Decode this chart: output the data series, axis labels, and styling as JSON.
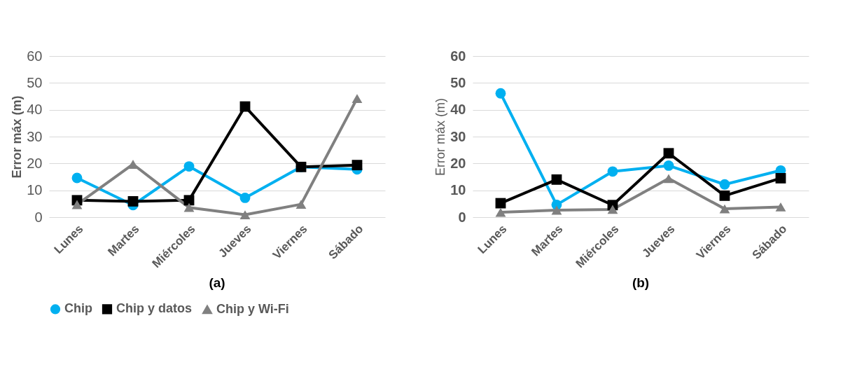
{
  "chart_data": [
    {
      "type": "line",
      "title": "(a)",
      "ylabel": "Error máx (m)",
      "categories": [
        "Lunes",
        "Martes",
        "Miércoles",
        "Jueves",
        "Viernes",
        "Sábado"
      ],
      "ylim": [
        0,
        60
      ],
      "yticks": [
        0,
        10,
        20,
        30,
        40,
        50,
        60
      ],
      "grid": "y",
      "legend": "bottom",
      "line_style": "solid",
      "series": [
        {
          "name": "Chip",
          "color": "#00b0f0",
          "marker": "circle",
          "values": [
            14.6,
            4.5,
            18.9,
            7.2,
            18.7,
            17.8
          ]
        },
        {
          "name": "Chip y datos",
          "color": "#000000",
          "marker": "square",
          "values": [
            6.3,
            5.9,
            6.3,
            41.2,
            18.7,
            19.4
          ]
        },
        {
          "name": "Chip y Wi-Fi",
          "color": "#808080",
          "marker": "triangle",
          "values": [
            4.7,
            19.7,
            3.6,
            0.9,
            4.8,
            44.2
          ]
        }
      ]
    },
    {
      "type": "line",
      "title": "(b)",
      "ylabel": "Error máx (m)",
      "categories": [
        "Lunes",
        "Martes",
        "Miércoles",
        "Jueves",
        "Viernes",
        "Sábado"
      ],
      "ylim": [
        0,
        60
      ],
      "yticks": [
        0,
        10,
        20,
        30,
        40,
        50,
        60
      ],
      "grid": "y",
      "legend": "bottom",
      "line_style": "solid",
      "series": [
        {
          "name": "Chip",
          "color": "#00b0f0",
          "marker": "circle",
          "values": [
            46.1,
            4.6,
            17.0,
            19.2,
            12.2,
            17.4
          ]
        },
        {
          "name": "Chip y datos",
          "color": "#000000",
          "marker": "square",
          "values": [
            5.2,
            14.0,
            4.5,
            23.8,
            8.0,
            14.5
          ]
        },
        {
          "name": "Chip y Wi-Fi",
          "color": "#808080",
          "marker": "triangle",
          "values": [
            1.8,
            2.6,
            2.9,
            14.4,
            3.1,
            3.8
          ]
        }
      ]
    }
  ]
}
